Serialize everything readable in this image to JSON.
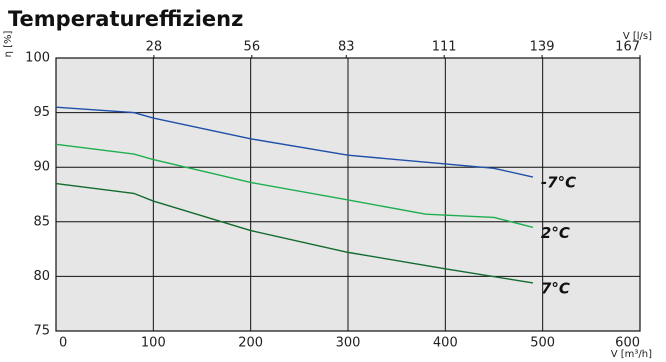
{
  "chart_data": {
    "type": "line",
    "title": "Temperatureffizienz",
    "y_label": "η [%]",
    "x_label": "V [m³/h]",
    "x2_label": "V [l/s]",
    "xlim": [
      0,
      600
    ],
    "xticks": [
      0,
      100,
      200,
      300,
      400,
      500,
      600
    ],
    "x2lim": [
      0,
      167
    ],
    "x2ticks": [
      28,
      56,
      83,
      111,
      139,
      167
    ],
    "ylim": [
      75,
      100
    ],
    "yticks": [
      75,
      80,
      85,
      90,
      95,
      100
    ],
    "grid": true,
    "background": "#e6e6e6",
    "series": [
      {
        "name": "-7°C",
        "color": "#1f4fa8",
        "x": [
          0,
          80,
          100,
          200,
          300,
          400,
          450,
          490
        ],
        "values": [
          95.5,
          95,
          94.5,
          92.6,
          91.1,
          90.3,
          89.9,
          89.1
        ]
      },
      {
        "name": "2°C",
        "color": "#1fae4f",
        "x": [
          0,
          80,
          100,
          200,
          300,
          380,
          450,
          490
        ],
        "values": [
          92.1,
          91.2,
          90.7,
          88.6,
          87,
          85.7,
          85.4,
          84.5
        ]
      },
      {
        "name": "7°C",
        "color": "#136b2e",
        "x": [
          0,
          80,
          100,
          200,
          300,
          400,
          490
        ],
        "values": [
          88.5,
          87.6,
          86.9,
          84.2,
          82.2,
          80.7,
          79.4
        ]
      }
    ]
  }
}
